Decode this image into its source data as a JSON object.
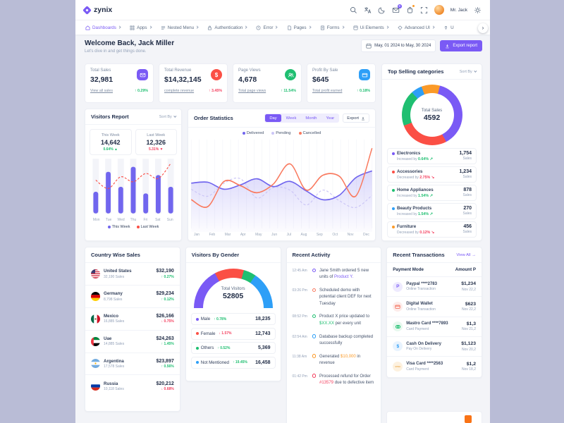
{
  "theme": {
    "primary": "#7a5af5",
    "chart_purple": "#7166ee",
    "pending": "#cbc5f6",
    "coral": "#f97a5f",
    "green": "#1fbf71",
    "red": "#f43f5e",
    "blue": "#2e9ff7",
    "orange": "#fb9a28"
  },
  "header": {
    "brand": "zynix",
    "user_name": "Mr. Jack",
    "mail_badge": "9"
  },
  "nav": {
    "items": [
      {
        "label": "Dashboards"
      },
      {
        "label": "Apps"
      },
      {
        "label": "Nested Menu"
      },
      {
        "label": "Authentication"
      },
      {
        "label": "Error"
      },
      {
        "label": "Pages"
      },
      {
        "label": "Forms"
      },
      {
        "label": "Ui Elements"
      },
      {
        "label": "Advanced UI"
      },
      {
        "label": "U"
      }
    ]
  },
  "welcome": {
    "title": "Welcome Back, Jack Miller",
    "subtitle": "Let's dive in and get things done.",
    "date_range": "May, 01 2024 to May, 30 2024",
    "export_label": "Export report"
  },
  "stats": {
    "cards": [
      {
        "title": "Total Sales",
        "value": "32,981",
        "link": "View all sales",
        "change": "↑ 0.29%",
        "tone": "pos",
        "icon_bg": "#7a5af5"
      },
      {
        "title": "Total Revenue",
        "value": "$14,32,145",
        "link": "complete revenue",
        "change": "↑ 3.45%",
        "tone": "neg",
        "icon_bg": "#fb4f45"
      },
      {
        "title": "Page Views",
        "value": "4,678",
        "link": "Total page views",
        "change": "↑ 11.54%",
        "tone": "pos",
        "icon_bg": "#1fbf71"
      },
      {
        "title": "Profit By Sale",
        "value": "$645",
        "link": "Total profit earned",
        "change": "↑ 0.18%",
        "tone": "pos",
        "icon_bg": "#2e9ff7"
      }
    ]
  },
  "top_categories": {
    "title": "Top Selling categories",
    "sort_label": "Sort By",
    "center_label": "Total Sales",
    "center_value": "4592",
    "chart_data": {
      "type": "pie",
      "start_deg": 15,
      "labels": [
        "Electronics",
        "Accessories",
        "Home Appliances",
        "Beauty Products",
        "Furniture"
      ],
      "values": [
        1754,
        1234,
        878,
        270,
        456
      ]
    },
    "items": [
      {
        "name": "Electronics",
        "prefix": "Increased by",
        "pct": "0.64%",
        "glyph": "↗",
        "tone": "pos",
        "sales": "1,754",
        "unit": "Sales",
        "color": "#7a5af5",
        "value": 1754
      },
      {
        "name": "Accessories",
        "prefix": "Decreased by",
        "pct": "2.75%",
        "glyph": "↘",
        "tone": "neg",
        "sales": "1,234",
        "unit": "Sales",
        "color": "#fb4f45",
        "value": 1234
      },
      {
        "name": "Home Appliances",
        "prefix": "Increased by",
        "pct": "1.54%",
        "glyph": "↗",
        "tone": "pos",
        "sales": "878",
        "unit": "Sales",
        "color": "#1fbf71",
        "value": 878
      },
      {
        "name": "Beauty Products",
        "prefix": "Increased by",
        "pct": "1.54%",
        "glyph": "↗",
        "tone": "pos",
        "sales": "270",
        "unit": "Sales",
        "color": "#2e9ff7",
        "value": 270
      },
      {
        "name": "Furniture",
        "prefix": "Decreased by",
        "pct": "0.12%",
        "glyph": "↘",
        "tone": "neg",
        "sales": "456",
        "unit": "Sales",
        "color": "#fb9a28",
        "value": 456
      }
    ]
  },
  "visitors_report": {
    "title": "Visitors Report",
    "sort_label": "Sort By",
    "this_week": {
      "label": "This Week",
      "value": "14,642",
      "change": "0.64% ▲",
      "tone": "pos"
    },
    "last_week": {
      "label": "Last Week",
      "value": "12,326",
      "change": "5.31% ▼",
      "tone": "neg"
    },
    "chart_data": {
      "type": "bar",
      "days": [
        "Mon",
        "Tue",
        "Wed",
        "Thu",
        "Fri",
        "Sat",
        "Sun"
      ],
      "this_week": [
        13,
        25,
        16,
        28,
        12,
        23,
        16
      ],
      "last_week": [
        20,
        15,
        22,
        19,
        24,
        21,
        30
      ],
      "ymax": 32
    },
    "legend": [
      {
        "label": "This Week",
        "color": "#7166ee"
      },
      {
        "label": "Last Week",
        "color": "#fb4f45"
      }
    ]
  },
  "order_statistics": {
    "title": "Order Statistics",
    "tabs": [
      "Day",
      "Week",
      "Month",
      "Year"
    ],
    "active_tab": "Day",
    "export_label": "Export",
    "legend": [
      {
        "label": "Delivered",
        "color": "#7166ee"
      },
      {
        "label": "Pending",
        "color": "#cbc5f6"
      },
      {
        "label": "Cancelled",
        "color": "#f97a5f"
      }
    ],
    "chart_data": {
      "type": "line",
      "x": [
        "Jan",
        "Feb",
        "Mar",
        "Apr",
        "May",
        "Jun",
        "Jul",
        "Aug",
        "Sep",
        "Oct",
        "Nov",
        "Dec"
      ],
      "series": [
        {
          "name": "Delivered",
          "values": [
            52,
            53,
            45,
            50,
            57,
            48,
            54,
            43,
            33,
            38,
            58,
            66
          ]
        },
        {
          "name": "Pending",
          "values": [
            45,
            37,
            52,
            57,
            35,
            47,
            44,
            27,
            44,
            32,
            24,
            38
          ]
        },
        {
          "name": "Cancelled",
          "values": [
            33,
            25,
            54,
            49,
            41,
            51,
            74,
            44,
            61,
            60,
            37,
            92
          ]
        }
      ],
      "ymax": 100
    }
  },
  "country_sales": {
    "title": "Country Wise Sales",
    "items": [
      {
        "name": "United States",
        "sales": "32,190 Sales",
        "amount": "$32,190",
        "change": "↑ 0.27%",
        "tone": "pos"
      },
      {
        "name": "Germany",
        "sales": "8,798 Sales",
        "amount": "$29,234",
        "change": "↑ 0.12%",
        "tone": "pos"
      },
      {
        "name": "Mexico",
        "sales": "16,885 Sales",
        "amount": "$26,166",
        "change": "↓ 0.75%",
        "tone": "neg"
      },
      {
        "name": "Uae",
        "sales": "14,885 Sales",
        "amount": "$24,263",
        "change": "↑ 1.45%",
        "tone": "pos"
      },
      {
        "name": "Argentina",
        "sales": "17,578 Sales",
        "amount": "$23,897",
        "change": "↑ 0.56%",
        "tone": "pos"
      },
      {
        "name": "Russia",
        "sales": "10,118 Sales",
        "amount": "$20,212",
        "change": "↓ 0.68%",
        "tone": "neg"
      }
    ]
  },
  "gender": {
    "title": "Visitors By Gender",
    "center_label": "Total Visitors",
    "center_value": "52805",
    "chart_data": {
      "type": "gauge",
      "labels": [
        "Male",
        "Female",
        "Others",
        "Not Mentioned"
      ],
      "values": [
        18235,
        12743,
        5369,
        16458
      ]
    },
    "items": [
      {
        "label": "Male",
        "change": "↑ 0.78%",
        "tone": "pos",
        "value": "18,235",
        "num": 18235,
        "color": "#7a5af5"
      },
      {
        "label": "Female",
        "change": "↓ 1.57%",
        "tone": "neg",
        "value": "12,743",
        "num": 12743,
        "color": "#fb4f45"
      },
      {
        "label": "Others",
        "change": "↑ 0.52%",
        "tone": "pos",
        "value": "5,369",
        "num": 5369,
        "color": "#1fbf71"
      },
      {
        "label": "Not Mentioned",
        "change": "↑ 19.45%",
        "tone": "pos",
        "value": "16,458",
        "num": 16458,
        "color": "#2e9ff7"
      }
    ]
  },
  "activity": {
    "title": "Recent Activity",
    "items": [
      {
        "time": "12:45 Am",
        "color": "#7a5af5",
        "before": "Jane Smith ordered 5 new units of ",
        "highlight": "Product Y.",
        "after": "",
        "hl_color": "#7a5af5"
      },
      {
        "time": "03:26 Pm",
        "color": "#f97a5f",
        "before": "Scheduled demo with potential client DEF for next Tuesday",
        "highlight": "",
        "after": "",
        "hl_color": "#f97a5f"
      },
      {
        "time": "08:52 Pm",
        "color": "#1fbf71",
        "before": "Product X price updated to ",
        "highlight": "$XX.XX",
        "after": " per every unit",
        "hl_color": "#1fbf71"
      },
      {
        "time": "02:54 Am",
        "color": "#2e9ff7",
        "before": "Database backup completed successfully",
        "highlight": "",
        "after": "",
        "hl_color": "#2e9ff7"
      },
      {
        "time": "11:38 Am",
        "color": "#fb9a28",
        "before": "Generated ",
        "highlight": "$10,000",
        "after": " in revenue",
        "hl_color": "#fb9a28"
      },
      {
        "time": "01:42 Pm",
        "color": "#f43f5e",
        "before": "Processed refund for Order ",
        "highlight": "#13579",
        "after": " due to defective item",
        "hl_color": "#f43f5e"
      }
    ]
  },
  "transactions": {
    "title": "Recent Transactions",
    "view_all": "View All →",
    "col_mode": "Payment Mode",
    "col_amount": "Amount P",
    "items": [
      {
        "name": "Paypal ****2783",
        "sub": "Online Transaction",
        "amount": "$1,234",
        "date": "Nov 22,2"
      },
      {
        "name": "Digital Wallet",
        "sub": "Online Transaction",
        "amount": "$623",
        "date": "Nov 22,2"
      },
      {
        "name": "Mastro Card ****7893",
        "sub": "Card Payment",
        "amount": "$1,3",
        "date": "Nov 21,2"
      },
      {
        "name": "Cash On Delivery",
        "sub": "Pay On Delivery",
        "amount": "$1,123",
        "date": "Nov 20,2"
      },
      {
        "name": "Visa Card ****2563",
        "sub": "Card Payment",
        "amount": "$1,2",
        "date": "Nov 18,2"
      }
    ]
  }
}
